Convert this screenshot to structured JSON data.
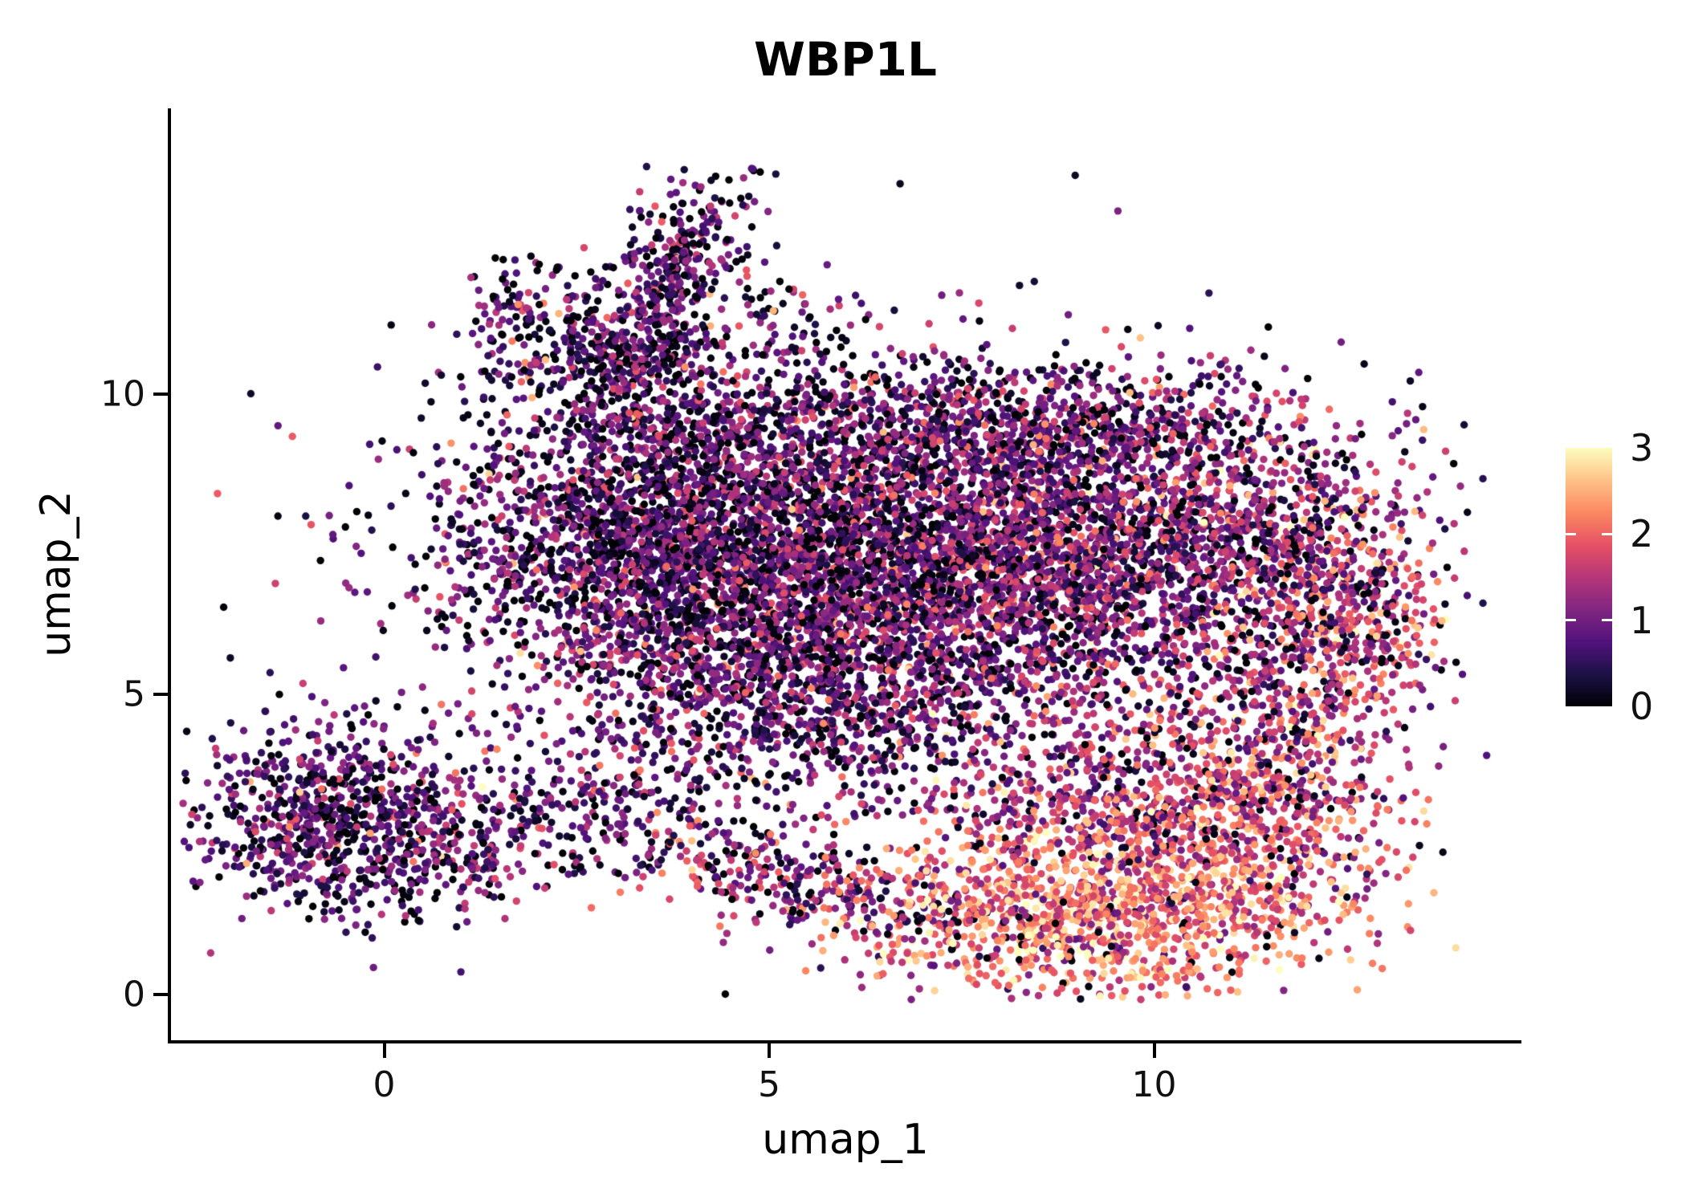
{
  "title": "WBP1L",
  "chart_data": {
    "type": "scatter",
    "title": "WBP1L",
    "xlabel": "umap_1",
    "ylabel": "umap_2",
    "x_ticks": [
      0,
      5,
      10
    ],
    "y_ticks": [
      0,
      5,
      10
    ],
    "xlim": [
      -2.79,
      14.77
    ],
    "ylim": [
      -0.76,
      14.76
    ],
    "grid": false,
    "point_radius_px": 4.7,
    "seed": 123457,
    "legend": {
      "position": "right",
      "breaks": [
        3,
        2,
        1,
        0
      ],
      "min": 0,
      "max": 3,
      "colormap": "magma"
    },
    "colormap_stops": [
      {
        "t": 0.0,
        "c": "#000004"
      },
      {
        "t": 0.125,
        "c": "#1D1147"
      },
      {
        "t": 0.25,
        "c": "#51127C"
      },
      {
        "t": 0.375,
        "c": "#822681"
      },
      {
        "t": 0.5,
        "c": "#B63679"
      },
      {
        "t": 0.625,
        "c": "#E65164"
      },
      {
        "t": 0.75,
        "c": "#FB8861"
      },
      {
        "t": 0.875,
        "c": "#FEC287"
      },
      {
        "t": 1.0,
        "c": "#FCFDBF"
      }
    ],
    "clusters": [
      {
        "name": "main-core-left",
        "cx": 3.6,
        "cy": 7.6,
        "sx": 1.5,
        "sy": 1.2,
        "rot": 0,
        "n": 2200,
        "expr_mean": 0.85,
        "expr_sd": 0.6,
        "zero_frac": 0.18
      },
      {
        "name": "main-core-mid",
        "cx": 6.3,
        "cy": 7.2,
        "sx": 1.7,
        "sy": 1.4,
        "rot": 0,
        "n": 2400,
        "expr_mean": 0.9,
        "expr_sd": 0.6,
        "zero_frac": 0.16
      },
      {
        "name": "main-core-right",
        "cx": 9.2,
        "cy": 7.3,
        "sx": 1.6,
        "sy": 1.3,
        "rot": 0,
        "n": 2000,
        "expr_mean": 1.1,
        "expr_sd": 0.65,
        "zero_frac": 0.12
      },
      {
        "name": "main-lower",
        "cx": 5.3,
        "cy": 5.0,
        "sx": 1.6,
        "sy": 0.9,
        "rot": 0,
        "n": 1000,
        "expr_mean": 0.9,
        "expr_sd": 0.6,
        "zero_frac": 0.15
      },
      {
        "name": "main-top-edge",
        "cx": 6.8,
        "cy": 9.6,
        "sx": 2.4,
        "sy": 0.5,
        "rot": 0,
        "n": 700,
        "expr_mean": 0.9,
        "expr_sd": 0.6,
        "zero_frac": 0.15
      },
      {
        "name": "top-edge-right",
        "cx": 9.0,
        "cy": 9.4,
        "sx": 1.2,
        "sy": 0.5,
        "rot": 0,
        "n": 300,
        "expr_mean": 1.0,
        "expr_sd": 0.6,
        "zero_frac": 0.13
      },
      {
        "name": "right-upper",
        "cx": 11.3,
        "cy": 8.0,
        "sx": 0.9,
        "sy": 0.8,
        "rot": 0,
        "n": 350,
        "expr_mean": 1.2,
        "expr_sd": 0.65,
        "zero_frac": 0.12
      },
      {
        "name": "arm-top",
        "cx": 3.8,
        "cy": 12.0,
        "sx": 1.0,
        "sy": 0.4,
        "rot": 70,
        "n": 380,
        "expr_mean": 0.85,
        "expr_sd": 0.6,
        "zero_frac": 0.18
      },
      {
        "name": "arm-base",
        "cx": 3.1,
        "cy": 10.6,
        "sx": 0.6,
        "sy": 0.5,
        "rot": 0,
        "n": 300,
        "expr_mean": 0.8,
        "expr_sd": 0.6,
        "zero_frac": 0.18
      },
      {
        "name": "topleft-sparse",
        "cx": 1.9,
        "cy": 11.3,
        "sx": 0.5,
        "sy": 0.5,
        "rot": 0,
        "n": 130,
        "expr_mean": 0.8,
        "expr_sd": 0.6,
        "zero_frac": 0.2
      },
      {
        "name": "top-mid-sparse",
        "cx": 5.3,
        "cy": 11.2,
        "sx": 0.6,
        "sy": 0.5,
        "rot": 0,
        "n": 60,
        "expr_mean": 0.8,
        "expr_sd": 0.6,
        "zero_frac": 0.25
      },
      {
        "name": "left-blob",
        "cx": -0.6,
        "cy": 2.9,
        "sx": 0.95,
        "sy": 0.8,
        "rot": 0,
        "n": 850,
        "expr_mean": 0.85,
        "expr_sd": 0.55,
        "zero_frac": 0.18
      },
      {
        "name": "left-blob-tail",
        "cx": 0.9,
        "cy": 2.3,
        "sx": 0.5,
        "sy": 0.4,
        "rot": 0,
        "n": 120,
        "expr_mean": 0.9,
        "expr_sd": 0.55,
        "zero_frac": 0.15
      },
      {
        "name": "mid-left-sparse",
        "cx": 2.6,
        "cy": 3.1,
        "sx": 0.7,
        "sy": 0.6,
        "rot": 0,
        "n": 120,
        "expr_mean": 0.9,
        "expr_sd": 0.6,
        "zero_frac": 0.2
      },
      {
        "name": "bridge-band",
        "cx": 5.2,
        "cy": 2.0,
        "sx": 1.7,
        "sy": 0.45,
        "rot": -20,
        "n": 420,
        "expr_mean": 1.1,
        "expr_sd": 0.7,
        "zero_frac": 0.12
      },
      {
        "name": "hot-core",
        "cx": 9.4,
        "cy": 1.4,
        "sx": 1.5,
        "sy": 0.75,
        "rot": 8,
        "n": 1300,
        "expr_mean": 2.1,
        "expr_sd": 0.55,
        "zero_frac": 0.03
      },
      {
        "name": "hot-upper",
        "cx": 9.6,
        "cy": 3.2,
        "sx": 1.4,
        "sy": 0.8,
        "rot": 0,
        "n": 700,
        "expr_mean": 1.5,
        "expr_sd": 0.6,
        "zero_frac": 0.08
      },
      {
        "name": "right-lobe",
        "cx": 12.0,
        "cy": 5.8,
        "sx": 1.3,
        "sy": 0.6,
        "rot": 75,
        "n": 500,
        "expr_mean": 1.4,
        "expr_sd": 0.7,
        "zero_frac": 0.1
      },
      {
        "name": "right-lobe-low",
        "cx": 11.6,
        "cy": 3.2,
        "sx": 0.8,
        "sy": 0.9,
        "rot": 0,
        "n": 380,
        "expr_mean": 1.8,
        "expr_sd": 0.6,
        "zero_frac": 0.06
      },
      {
        "name": "far-right-tip",
        "cx": 13.0,
        "cy": 6.3,
        "sx": 0.45,
        "sy": 0.9,
        "rot": 0,
        "n": 180,
        "expr_mean": 1.6,
        "expr_sd": 0.7,
        "zero_frac": 0.1
      },
      {
        "name": "diffuse-noise",
        "cx": 7.0,
        "cy": 6.5,
        "sx": 3.2,
        "sy": 2.2,
        "rot": 0,
        "n": 500,
        "expr_mean": 0.9,
        "expr_sd": 0.6,
        "zero_frac": 0.2
      }
    ]
  }
}
